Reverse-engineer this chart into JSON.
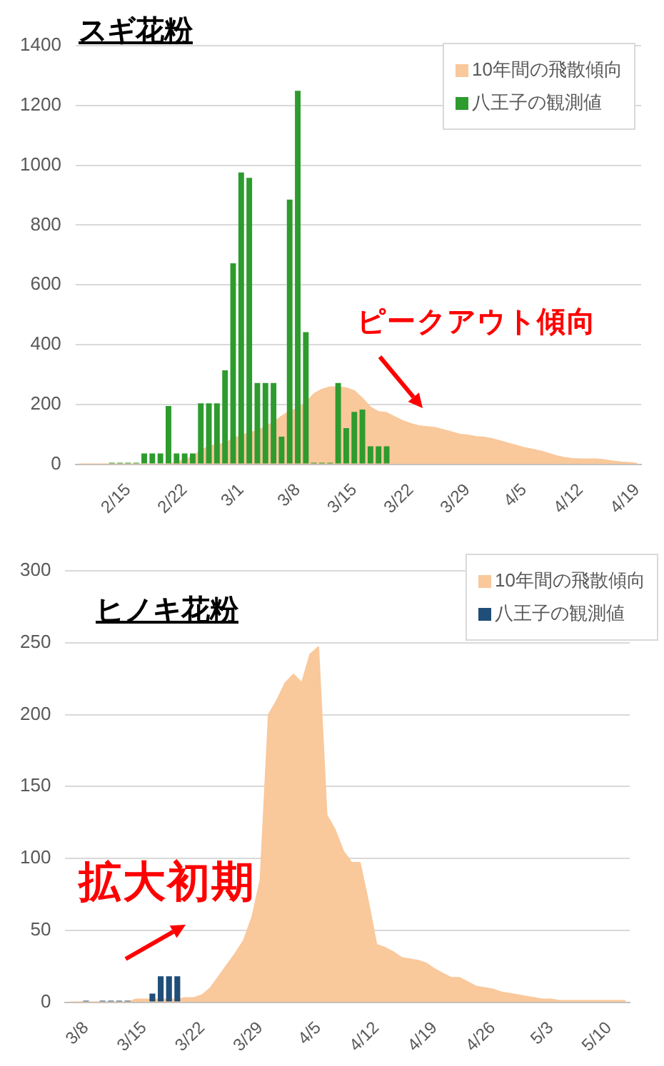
{
  "chart_data": [
    {
      "type": "bar",
      "title": "スギ花粉",
      "categories": [
        null,
        null,
        null,
        null,
        null,
        null,
        "2/15",
        null,
        null,
        null,
        null,
        null,
        null,
        "2/22",
        null,
        null,
        null,
        null,
        null,
        null,
        "3/1",
        null,
        null,
        null,
        null,
        null,
        null,
        "3/8",
        null,
        null,
        null,
        null,
        null,
        null,
        "3/15",
        null,
        null,
        null,
        null,
        null,
        null,
        "3/22",
        null,
        null,
        null,
        null,
        null,
        null,
        "3/29",
        null,
        null,
        null,
        null,
        null,
        null,
        "4/5",
        null,
        null,
        null,
        null,
        null,
        null,
        "4/12",
        null,
        null,
        null,
        null,
        null,
        null,
        "4/19"
      ],
      "series": [
        {
          "name": "10年間の飛散傾向",
          "type": "area",
          "color": "#f9c89b",
          "values": [
            0,
            0,
            0,
            0,
            0,
            0,
            0,
            0,
            0,
            0,
            0,
            0,
            5,
            15,
            25,
            45,
            60,
            65,
            70,
            85,
            95,
            105,
            112,
            125,
            140,
            160,
            178,
            185,
            205,
            235,
            250,
            258,
            258,
            255,
            245,
            220,
            190,
            175,
            172,
            158,
            145,
            135,
            128,
            125,
            122,
            115,
            108,
            100,
            97,
            92,
            90,
            85,
            78,
            70,
            63,
            55,
            50,
            44,
            36,
            28,
            22,
            18,
            17,
            17,
            17,
            14,
            10,
            7,
            5,
            2
          ]
        },
        {
          "name": "八王子の観測値",
          "color": "#2e9b2e",
          "values": [
            null,
            null,
            null,
            null,
            5,
            5,
            5,
            5,
            36,
            36,
            36,
            195,
            36,
            36,
            36,
            204,
            204,
            204,
            314,
            672,
            976,
            958,
            272,
            272,
            272,
            92,
            885,
            1249,
            442,
            5,
            5,
            5,
            272,
            121,
            175,
            183,
            60,
            60,
            60,
            null,
            null,
            null,
            null,
            null,
            null,
            null,
            null,
            null,
            null,
            null,
            null,
            null,
            null,
            null,
            null,
            null,
            null,
            null,
            null,
            null,
            null,
            null,
            null,
            null,
            null,
            null,
            null,
            null,
            null,
            null
          ]
        }
      ],
      "ylim": [
        0,
        1400
      ],
      "yticks": [
        0,
        200,
        400,
        600,
        800,
        1000,
        1200,
        1400
      ],
      "grid": "y",
      "legend": "top right",
      "annotations": [
        "ピークアウト傾向"
      ]
    },
    {
      "type": "bar",
      "title": "ヒノキ花粉",
      "categories": [
        null,
        null,
        "3/8",
        null,
        null,
        null,
        null,
        null,
        null,
        "3/15",
        null,
        null,
        null,
        null,
        null,
        null,
        "3/22",
        null,
        null,
        null,
        null,
        null,
        null,
        "3/29",
        null,
        null,
        null,
        null,
        null,
        null,
        "4/5",
        null,
        null,
        null,
        null,
        null,
        null,
        "4/12",
        null,
        null,
        null,
        null,
        null,
        null,
        "4/19",
        null,
        null,
        null,
        null,
        null,
        null,
        "4/26",
        null,
        null,
        null,
        null,
        null,
        null,
        "5/3",
        null,
        null,
        null,
        null,
        null,
        null,
        "5/10",
        null,
        null
      ],
      "series": [
        {
          "name": "10年間の飛散傾向",
          "type": "area",
          "color": "#f9c89b",
          "values": [
            0,
            0,
            0,
            0,
            0,
            0,
            0,
            0,
            2,
            2,
            2,
            2,
            2,
            2,
            3,
            3,
            5,
            10,
            18,
            26,
            34,
            43,
            59,
            85,
            200,
            210,
            222,
            228,
            222,
            242,
            247,
            130,
            120,
            105,
            97,
            97,
            70,
            40,
            38,
            35,
            31,
            30,
            29,
            27,
            23,
            20,
            17,
            17,
            14,
            11,
            10,
            9,
            7,
            6,
            5,
            4,
            3,
            2,
            2,
            1,
            1,
            1,
            1,
            1,
            1,
            1,
            1,
            1
          ]
        },
        {
          "name": "八王子の観測値",
          "color": "#1f4e79",
          "values": [
            null,
            null,
            1,
            null,
            1,
            1,
            1,
            1,
            null,
            null,
            6,
            18,
            18,
            18,
            null,
            null,
            null,
            null,
            null,
            null,
            null,
            null,
            null,
            null,
            null,
            null,
            null,
            null,
            null,
            null,
            null,
            null,
            null,
            null,
            null,
            null,
            null,
            null,
            null,
            null,
            null,
            null,
            null,
            null,
            null,
            null,
            null,
            null,
            null,
            null,
            null,
            null,
            null,
            null,
            null,
            null,
            null,
            null,
            null,
            null,
            null,
            null,
            null,
            null,
            null,
            null,
            null,
            null
          ]
        }
      ],
      "ylim": [
        0,
        300
      ],
      "yticks": [
        0,
        50,
        100,
        150,
        200,
        250,
        300
      ],
      "grid": "y",
      "legend": "top right",
      "annotations": [
        "拡大初期"
      ]
    }
  ]
}
